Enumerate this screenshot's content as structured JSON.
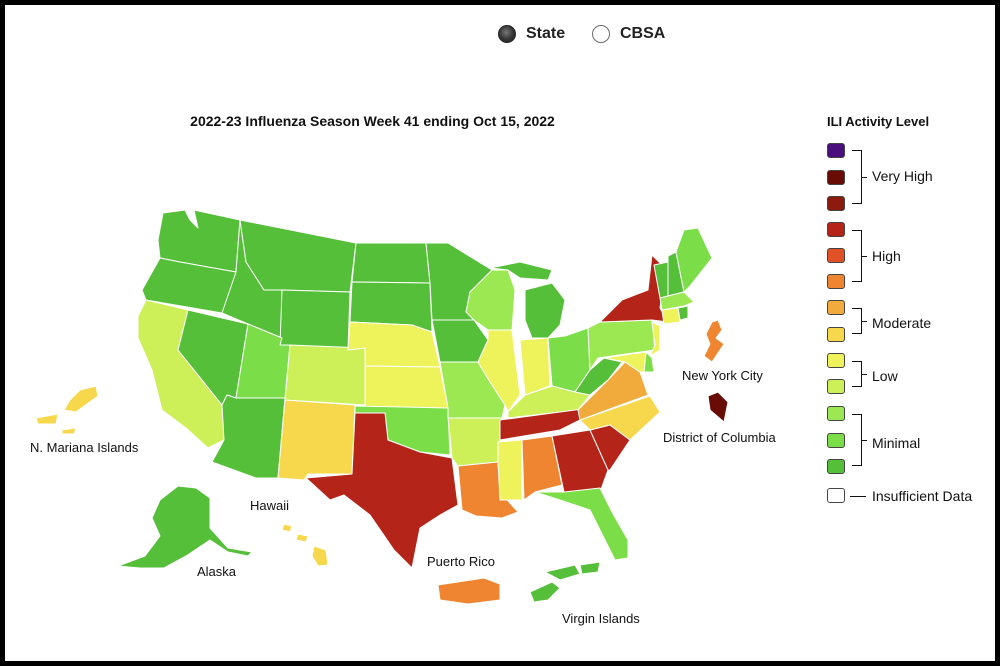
{
  "controls": {
    "view_options": [
      {
        "label": "State",
        "selected": true
      },
      {
        "label": "CBSA",
        "selected": false
      }
    ]
  },
  "map": {
    "title": "2022-23 Influenza Season Week 41 ending Oct 15, 2022",
    "labels": {
      "n_mariana": "N. Mariana Islands",
      "hawaii": "Hawaii",
      "alaska": "Alaska",
      "puerto_rico": "Puerto Rico",
      "virgin_islands": "Virgin Islands",
      "new_york_city": "New York City",
      "district_of_columbia": "District of Columbia"
    },
    "regions": {
      "WA": "minimal-3",
      "OR": "minimal-3",
      "CA": "low-2",
      "ID": "minimal-3",
      "NV": "minimal-3",
      "UT": "minimal-2",
      "AZ": "minimal-3",
      "MT": "minimal-3",
      "WY": "minimal-3",
      "CO": "low-2",
      "NM": "moderate-2",
      "ND": "minimal-3",
      "SD": "minimal-3",
      "NE": "low-1",
      "KS": "low-1",
      "OK": "minimal-2",
      "TX": "high-1",
      "MN": "minimal-3",
      "IA": "minimal-3",
      "MO": "minimal-1",
      "AR": "low-2",
      "LA": "high-3",
      "WI": "minimal-1",
      "IL": "low-1",
      "MI": "minimal-3",
      "IN": "low-1",
      "OH": "minimal-2",
      "KY": "low-2",
      "TN": "high-1",
      "MS": "low-1",
      "AL": "high-3",
      "GA": "high-1",
      "FL": "minimal-2",
      "SC": "high-1",
      "NC": "moderate-2",
      "VA": "moderate-1",
      "WV": "minimal-3",
      "PA": "minimal-1",
      "NY": "high-1",
      "VT": "minimal-3",
      "NH": "minimal-3",
      "ME": "minimal-2",
      "MA": "minimal-1",
      "CT": "low-1",
      "RI": "minimal-3",
      "NJ": "low-1",
      "DE": "minimal-2",
      "MD": "low-1",
      "NYC": "high-3",
      "DC": "very-high-2",
      "PR": "high-3",
      "VI": "minimal-3",
      "AK": "minimal-3",
      "HI": "moderate-2",
      "MP": "moderate-2"
    }
  },
  "legend": {
    "title": "ILI Activity Level",
    "colors": {
      "very-high-1": "#4b0e7d",
      "very-high-2": "#6a0c06",
      "very-high-3": "#8c1b0e",
      "high-1": "#b42418",
      "high-2": "#e05225",
      "high-3": "#ef8530",
      "moderate-1": "#f1ab3c",
      "moderate-2": "#f7d74b",
      "low-1": "#eef25b",
      "low-2": "#cdef58",
      "minimal-1": "#9be852",
      "minimal-2": "#7bde48",
      "minimal-3": "#56bf3a",
      "insufficient": "#ffffff"
    },
    "groups": [
      {
        "label": "Very High",
        "levels": [
          "very-high-1",
          "very-high-2",
          "very-high-3"
        ]
      },
      {
        "label": "High",
        "levels": [
          "high-1",
          "high-2",
          "high-3"
        ]
      },
      {
        "label": "Moderate",
        "levels": [
          "moderate-1",
          "moderate-2"
        ]
      },
      {
        "label": "Low",
        "levels": [
          "low-1",
          "low-2"
        ]
      },
      {
        "label": "Minimal",
        "levels": [
          "minimal-1",
          "minimal-2",
          "minimal-3"
        ]
      }
    ],
    "insufficient_label": "Insufficient Data"
  }
}
